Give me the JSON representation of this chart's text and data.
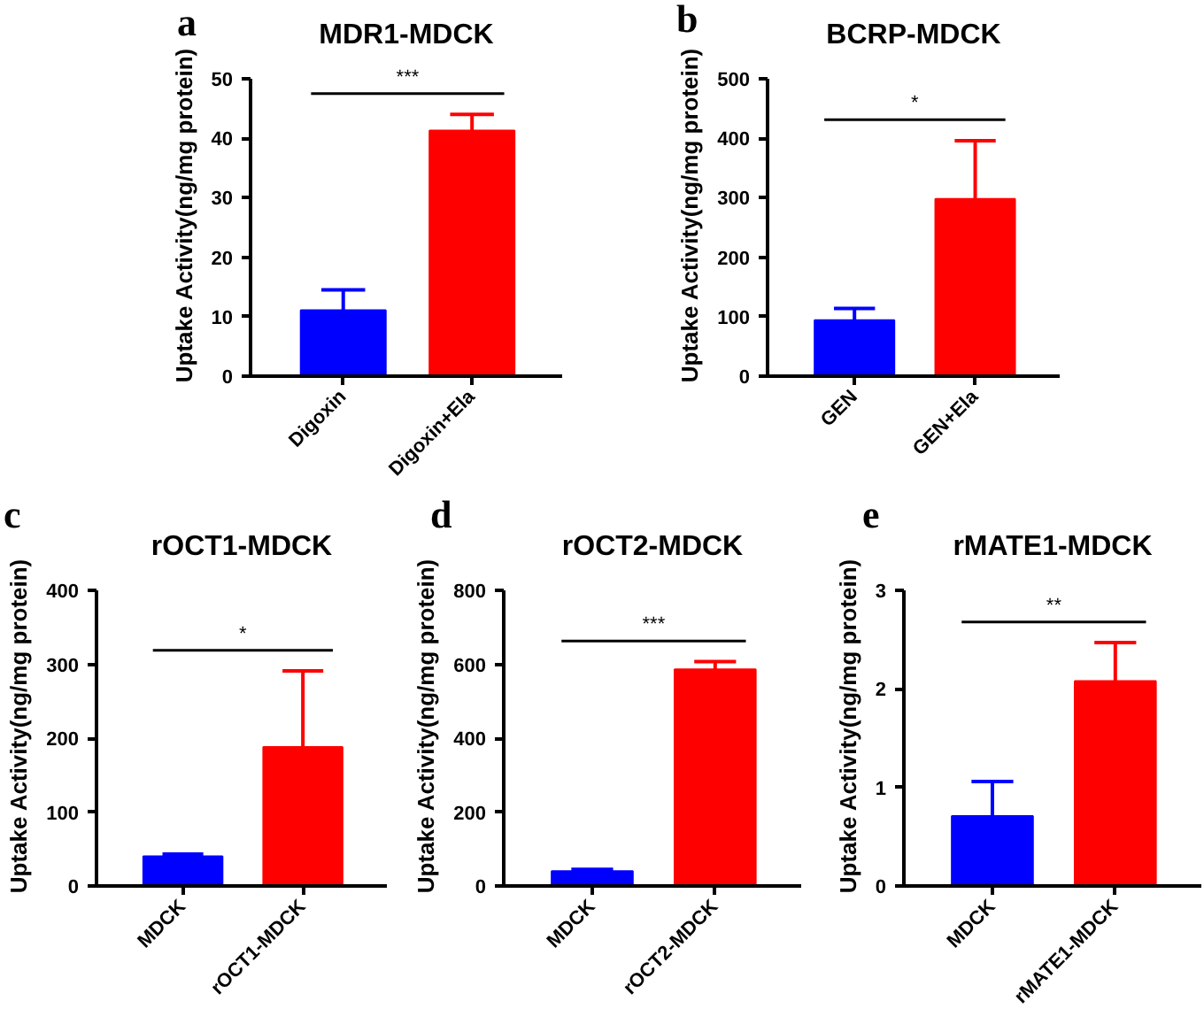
{
  "chart_data": [
    {
      "type": "bar",
      "title": "MDR1-MDCK",
      "ylabel": "Uptake Activity(ng/mg protein)",
      "categories": [
        "Digoxin",
        "Digoxin+Ela"
      ],
      "values": [
        11.1,
        41.3
      ],
      "colors": [
        "#0000ff",
        "#ff0000"
      ],
      "errors": [
        [
          11.1,
          14.5
        ],
        [
          41.3,
          44.0
        ]
      ],
      "ylim": [
        0,
        50
      ],
      "yticks": [
        0,
        10,
        20,
        30,
        40,
        50
      ],
      "annotations": [
        "a",
        "***"
      ]
    },
    {
      "type": "bar",
      "title": "BCRP-MDCK",
      "ylabel": "Uptake Activity(ng/mg protein)",
      "categories": [
        "GEN",
        "GEN+Ela"
      ],
      "values": [
        94,
        298
      ],
      "colors": [
        "#0000ff",
        "#ff0000"
      ],
      "errors": [
        [
          94,
          114
        ],
        [
          298,
          396
        ]
      ],
      "ylim": [
        0,
        500
      ],
      "yticks": [
        0,
        100,
        200,
        300,
        400,
        500
      ],
      "annotations": [
        "b",
        "*"
      ]
    },
    {
      "type": "bar",
      "title": "rOCT1-MDCK",
      "ylabel": "Uptake Activity(ng/mg protein)",
      "categories": [
        "MDCK",
        "rOCT1-MDCK"
      ],
      "values": [
        40,
        188
      ],
      "colors": [
        "#0000ff",
        "#ff0000"
      ],
      "errors": [
        [
          40,
          43
        ],
        [
          188,
          291
        ]
      ],
      "ylim": [
        0,
        400
      ],
      "yticks": [
        0,
        100,
        200,
        300,
        400
      ],
      "annotations": [
        "c",
        "*"
      ]
    },
    {
      "type": "bar",
      "title": "rOCT2-MDCK",
      "ylabel": "Uptake Activity(ng/mg protein)",
      "categories": [
        "MDCK",
        "rOCT2-MDCK"
      ],
      "values": [
        40,
        586
      ],
      "colors": [
        "#0000ff",
        "#ff0000"
      ],
      "errors": [
        [
          40,
          45
        ],
        [
          586,
          607
        ]
      ],
      "ylim": [
        0,
        800
      ],
      "yticks": [
        0,
        200,
        400,
        600,
        800
      ],
      "annotations": [
        "d",
        "***"
      ]
    },
    {
      "type": "bar",
      "title": "rMATE1-MDCK",
      "ylabel": "Uptake Activity(ng/mg protein)",
      "categories": [
        "MDCK",
        "rMATE1-MDCK"
      ],
      "values": [
        0.71,
        2.08
      ],
      "colors": [
        "#0000ff",
        "#ff0000"
      ],
      "errors": [
        [
          0.71,
          1.06
        ],
        [
          2.08,
          2.47
        ]
      ],
      "ylim": [
        0,
        3
      ],
      "yticks": [
        0,
        1,
        2,
        3
      ],
      "annotations": [
        "e",
        "**"
      ]
    }
  ]
}
